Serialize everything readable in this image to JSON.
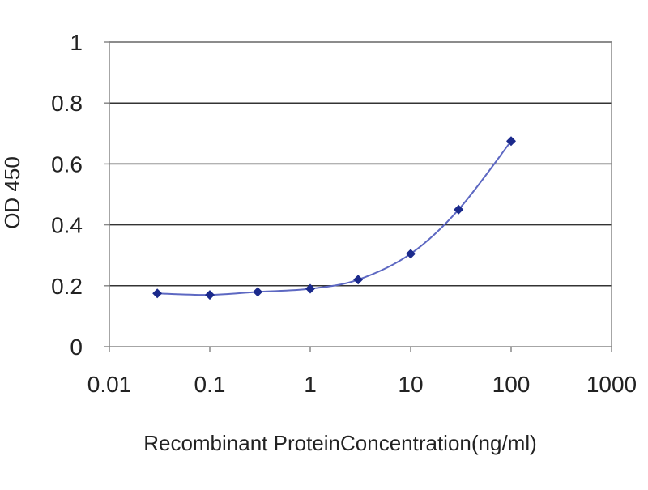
{
  "chart_data": {
    "type": "scatter",
    "title": "",
    "xlabel": "Recombinant ProteinConcentration(ng/ml)",
    "ylabel": "OD 450",
    "x_scale": "log",
    "xlim": [
      0.01,
      1000
    ],
    "ylim": [
      0,
      1
    ],
    "x_ticks": [
      0.01,
      0.1,
      1,
      10,
      100,
      1000
    ],
    "x_tick_labels": [
      "0.01",
      "0.1",
      "1",
      "10",
      "100",
      "1000"
    ],
    "y_ticks": [
      0,
      0.2,
      0.4,
      0.6,
      0.8,
      1
    ],
    "y_tick_labels": [
      "0",
      "0.2",
      "0.4",
      "0.6",
      "0.8",
      "1"
    ],
    "grid": "horizontal",
    "legend": "none",
    "series": [
      {
        "x": [
          0.03,
          0.1,
          0.3,
          1,
          3,
          10,
          30,
          100
        ],
        "y": [
          0.175,
          0.17,
          0.18,
          0.19,
          0.22,
          0.305,
          0.45,
          0.675
        ],
        "color": "#1b2a8c",
        "line_color": "#5d68c2"
      }
    ],
    "colors": {
      "plot_background": "#ffffff",
      "gridline": "#333333",
      "frame": "#888888",
      "marker": "#1b2a8c",
      "line": "#5d68c2"
    }
  }
}
